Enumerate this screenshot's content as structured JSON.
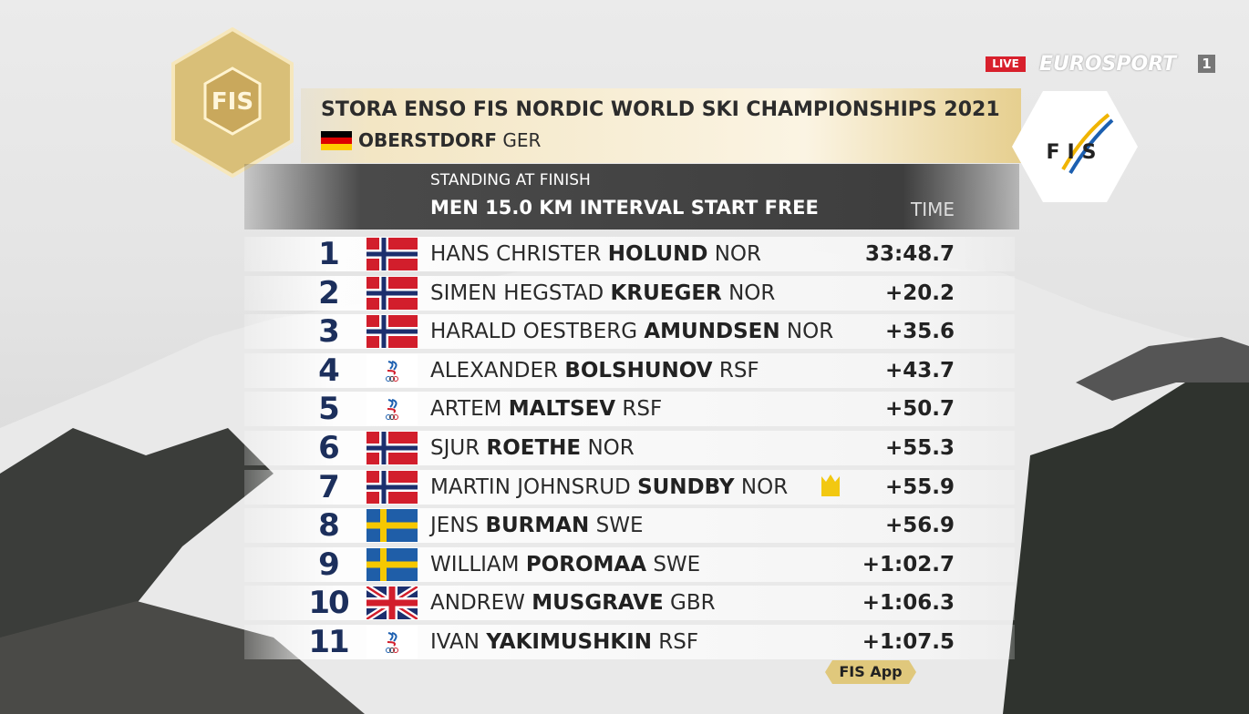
{
  "header": {
    "title": "STORA ENSO FIS NORDIC WORLD SKI CHAMPIONSHIPS 2021",
    "location": "OBERSTDORF",
    "country": "GER",
    "snowflake_text": "FIS",
    "fis_logo": "FIS"
  },
  "broadcast": {
    "live": "LIVE",
    "channel": "EUROSPORT",
    "channel_number": "1"
  },
  "standing": {
    "status": "STANDING AT FINISH",
    "event": "MEN 15.0 KM INTERVAL START FREE",
    "time_header": "TIME"
  },
  "table": {
    "rows": [
      {
        "rank": "1",
        "first": "HANS CHRISTER",
        "last": "HOLUND",
        "nation": "NOR",
        "time": "33:48.7"
      },
      {
        "rank": "2",
        "first": "SIMEN HEGSTAD",
        "last": "KRUEGER",
        "nation": "NOR",
        "time": "+20.2"
      },
      {
        "rank": "3",
        "first": "HARALD OESTBERG",
        "last": "AMUNDSEN",
        "nation": "NOR",
        "time": "+35.6"
      },
      {
        "rank": "4",
        "first": "ALEXANDER",
        "last": "BOLSHUNOV",
        "nation": "RSF",
        "time": "+43.7"
      },
      {
        "rank": "5",
        "first": "ARTEM",
        "last": "MALTSEV",
        "nation": "RSF",
        "time": "+50.7"
      },
      {
        "rank": "6",
        "first": "SJUR",
        "last": "ROETHE",
        "nation": "NOR",
        "time": "+55.3"
      },
      {
        "rank": "7",
        "first": "MARTIN JOHNSRUD",
        "last": "SUNDBY",
        "nation": "NOR",
        "time": "+55.9"
      },
      {
        "rank": "8",
        "first": "JENS",
        "last": "BURMAN",
        "nation": "SWE",
        "time": "+56.9"
      },
      {
        "rank": "9",
        "first": "WILLIAM",
        "last": "POROMAA",
        "nation": "SWE",
        "time": "+1:02.7"
      },
      {
        "rank": "10",
        "first": "ANDREW",
        "last": "MUSGRAVE",
        "nation": "GBR",
        "time": "+1:06.3"
      },
      {
        "rank": "11",
        "first": "IVAN",
        "last": "YAKIMUSHKIN",
        "nation": "RSF",
        "time": "+1:07.5"
      }
    ]
  },
  "footer": {
    "app": "FIS App"
  }
}
